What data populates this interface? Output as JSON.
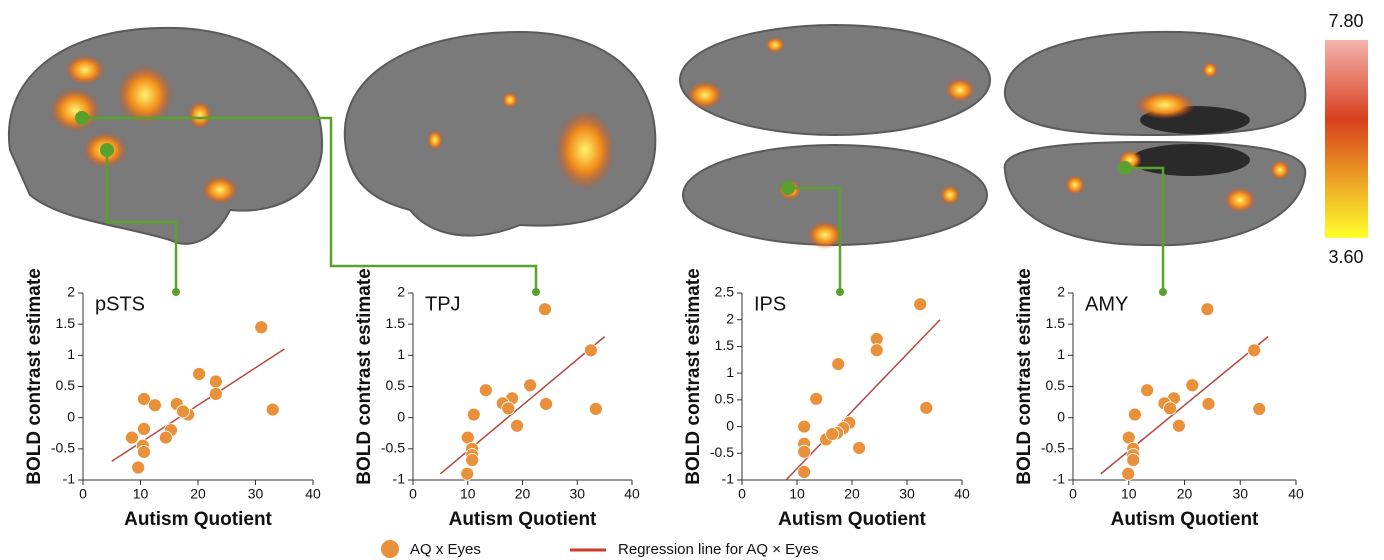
{
  "chart_data": [
    {
      "type": "scatter",
      "title": "pSTS",
      "x_label": "Autism Quotient",
      "y_label": "BOLD contrast estimate",
      "xlim": [
        0,
        40
      ],
      "xticks": [
        0,
        10,
        20,
        30,
        40
      ],
      "ylim": [
        -1,
        2
      ],
      "yticks": [
        -1,
        -0.5,
        0,
        0.5,
        1,
        1.5,
        2
      ],
      "color": "#e8913a",
      "x": [
        31,
        33,
        20.2,
        23.1,
        23.1,
        16.3,
        18.3,
        17.4,
        10.6,
        12.5,
        10.6,
        15.3,
        14.4,
        8.5,
        10.4,
        10.6,
        9.6
      ],
      "values": [
        1.45,
        0.13,
        0.7,
        0.58,
        0.38,
        0.22,
        0.05,
        0.1,
        0.3,
        0.2,
        -0.18,
        -0.2,
        -0.32,
        -0.32,
        -0.45,
        -0.55,
        -0.8
      ],
      "fit_color": "#b5473f",
      "fit_x": [
        5,
        35
      ],
      "fit_values": [
        -0.7,
        1.1
      ]
    },
    {
      "type": "scatter",
      "title": "TPJ",
      "x_label": "Autism Quotient",
      "y_label": "BOLD contrast estimate",
      "xlim": [
        0,
        40
      ],
      "xticks": [
        0,
        10,
        20,
        30,
        40
      ],
      "ylim": [
        -1,
        2
      ],
      "yticks": [
        -1,
        -0.5,
        0,
        0.5,
        1,
        1.5,
        2
      ],
      "color": "#e8913a",
      "x": [
        24.1,
        32.5,
        33.4,
        24.3,
        21.4,
        18.1,
        16.4,
        17.4,
        13.3,
        19,
        11.1,
        10,
        10.8,
        10.8,
        10.8,
        9.9
      ],
      "values": [
        1.74,
        1.08,
        0.14,
        0.22,
        0.52,
        0.31,
        0.23,
        0.15,
        0.44,
        -0.13,
        0.05,
        -0.32,
        -0.5,
        -0.6,
        -0.68,
        -0.9
      ],
      "fit_color": "#b5473f",
      "fit_x": [
        5,
        35
      ],
      "fit_values": [
        -0.9,
        1.3
      ]
    },
    {
      "type": "scatter",
      "title": "IPS",
      "x_label": "Autism Quotient",
      "y_label": "BOLD contrast estimate",
      "xlim": [
        0,
        40
      ],
      "xticks": [
        0,
        10,
        20,
        30,
        40
      ],
      "ylim": [
        -1,
        2.5
      ],
      "yticks": [
        -1,
        -0.5,
        0,
        0.5,
        1,
        1.5,
        2,
        2.5
      ],
      "color": "#e8913a",
      "x": [
        32.4,
        24.5,
        24.5,
        17.5,
        13.5,
        33.5,
        19.5,
        18.4,
        17.3,
        21.3,
        11.3,
        11.3,
        15.3,
        16.4,
        11.3,
        11.3
      ],
      "values": [
        2.29,
        1.64,
        1.43,
        1.17,
        0.52,
        0.35,
        0.07,
        -0.03,
        -0.12,
        -0.4,
        0,
        -0.32,
        -0.24,
        -0.14,
        -0.47,
        -0.85
      ],
      "fit_color": "#b5473f",
      "fit_x": [
        8,
        36
      ],
      "fit_values": [
        -1,
        2
      ]
    },
    {
      "type": "scatter",
      "title": "AMY",
      "x_label": "Autism Quotient",
      "y_label": "BOLD contrast estimate",
      "xlim": [
        0,
        40
      ],
      "xticks": [
        0,
        10,
        20,
        30,
        40
      ],
      "ylim": [
        -1,
        2
      ],
      "yticks": [
        -1,
        -0.5,
        0,
        0.5,
        1,
        1.5,
        2
      ],
      "color": "#e8913a",
      "x": [
        24.1,
        32.5,
        33.4,
        24.3,
        21.4,
        18.1,
        16.4,
        17.4,
        13.3,
        19,
        11.1,
        10,
        10.8,
        10.8,
        10.8,
        9.9
      ],
      "values": [
        1.74,
        1.08,
        0.14,
        0.22,
        0.52,
        0.31,
        0.23,
        0.15,
        0.44,
        -0.13,
        0.05,
        -0.32,
        -0.5,
        -0.6,
        -0.68,
        -0.9
      ],
      "fit_color": "#b5473f",
      "fit_x": [
        5,
        35
      ],
      "fit_values": [
        -0.9,
        1.3
      ]
    }
  ],
  "legend": [
    {
      "label": "AQ x Eyes",
      "color": "#e8913a"
    },
    {
      "label": "Regression line for AQ × Eyes",
      "color": "#cc3b2e"
    }
  ],
  "colorbar": {
    "max": {
      "value": 7.8,
      "label": "7.80"
    },
    "min": {
      "value": 3.6,
      "label": "3.60"
    },
    "top_color": "#f3b4ae",
    "mid_color": "#d8401e",
    "bottom_color": "#ffff2a"
  }
}
